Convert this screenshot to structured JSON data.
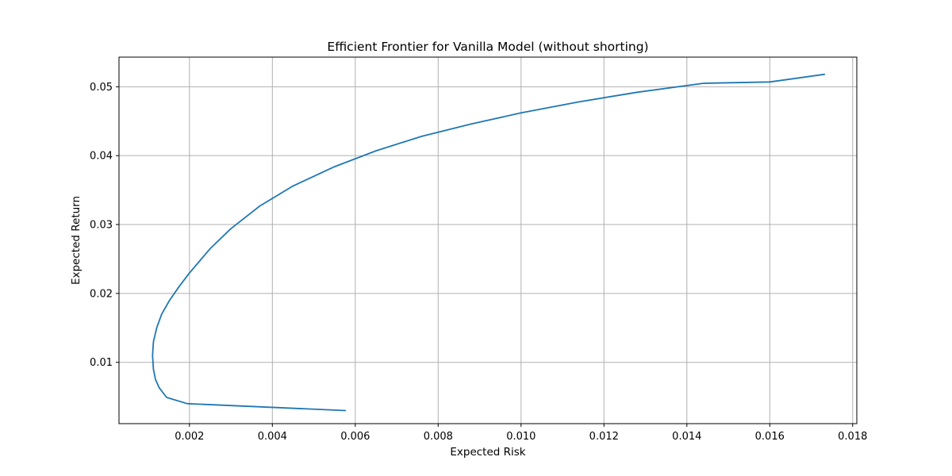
{
  "chart_data": {
    "type": "line",
    "title": "Efficient Frontier for Vanilla Model (without shorting)",
    "xlabel": "Expected Risk",
    "ylabel": "Expected Return",
    "xlim": [
      0.0003,
      0.0181
    ],
    "ylim": [
      0.0011,
      0.0543
    ],
    "xticks": [
      0.002,
      0.004,
      0.006,
      0.008,
      0.01,
      0.012,
      0.014,
      0.016,
      0.018
    ],
    "xtick_labels": [
      "0.002",
      "0.004",
      "0.006",
      "0.008",
      "0.010",
      "0.012",
      "0.014",
      "0.016",
      "0.018"
    ],
    "yticks": [
      0.01,
      0.02,
      0.03,
      0.04,
      0.05
    ],
    "ytick_labels": [
      "0.01",
      "0.02",
      "0.03",
      "0.04",
      "0.05"
    ],
    "grid": true,
    "line_color": "#1f77b4",
    "series": [
      {
        "x": [
          0.00576,
          0.00195,
          0.00145,
          0.00127,
          0.00118,
          0.00113,
          0.00111,
          0.00113,
          0.00121,
          0.00133,
          0.00152,
          0.00175,
          0.00199,
          0.0025,
          0.003,
          0.0037,
          0.0045,
          0.0055,
          0.0065,
          0.0076,
          0.0088,
          0.01,
          0.0114,
          0.0128,
          0.0144,
          0.016,
          0.01732
        ],
        "y": [
          0.003,
          0.004,
          0.0049,
          0.0063,
          0.0075,
          0.009,
          0.011,
          0.013,
          0.015,
          0.017,
          0.019,
          0.021,
          0.0229,
          0.0265,
          0.0294,
          0.0327,
          0.0356,
          0.0384,
          0.0407,
          0.0428,
          0.0446,
          0.0462,
          0.0478,
          0.0492,
          0.0505,
          0.0507,
          0.0518
        ]
      }
    ]
  }
}
